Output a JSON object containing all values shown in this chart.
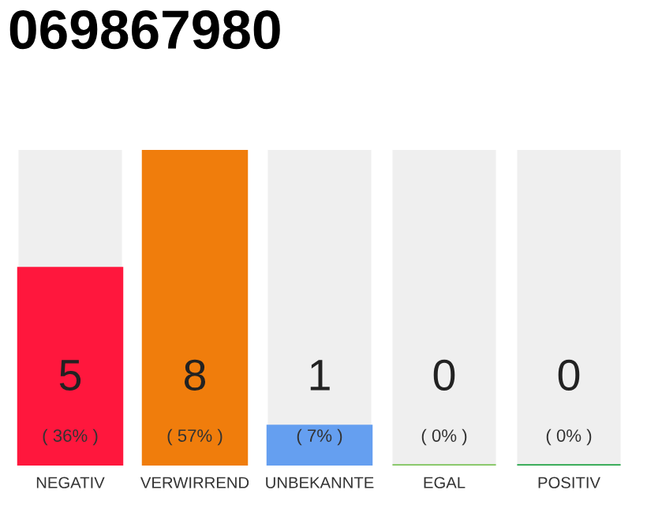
{
  "chart_data": {
    "type": "bar",
    "title": "069867980",
    "categories": [
      "NEGATIV",
      "VERWIRREND",
      "UNBEKANNTE",
      "EGAL",
      "POSITIV"
    ],
    "values": [
      5,
      8,
      1,
      0,
      0
    ],
    "colors": [
      "#ff173d",
      "#f07d0c",
      "#659ff0",
      "#7cc35a",
      "#23a447"
    ],
    "data_labels": true,
    "annotations": [
      "( 36% )",
      "( 57% )",
      "( 7% )",
      "( 0% )",
      "( 0% )"
    ],
    "grid": false,
    "legend": false
  }
}
